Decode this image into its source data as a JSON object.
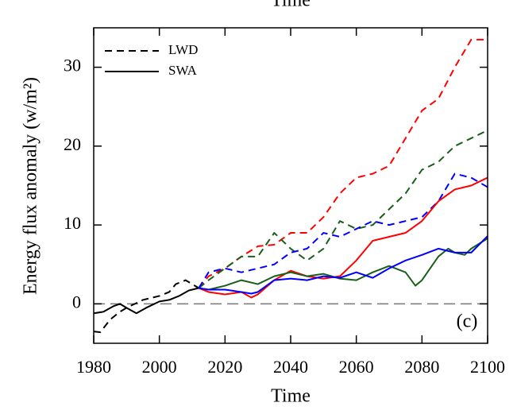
{
  "chart_data": {
    "type": "line",
    "top_label": "Time",
    "x_label": "Time",
    "y_label": "Energy flux anomaly (w/m²)",
    "annotation": "(c)",
    "xlim": [
      1980,
      2100
    ],
    "ylim": [
      -5,
      35
    ],
    "xticks": [
      1980,
      2000,
      2020,
      2040,
      2060,
      2080,
      2100
    ],
    "yticks": [
      0,
      10,
      20,
      30
    ],
    "hline": 0,
    "legend": [
      {
        "name": "LWD",
        "dash": true
      },
      {
        "name": "SWA",
        "dash": false
      }
    ],
    "series": [
      {
        "color": "#000000",
        "dash": true,
        "x": [
          1980,
          1982,
          1985,
          1988,
          1990,
          1995,
          2000,
          2003,
          2005,
          2008,
          2010,
          2012
        ],
        "values": [
          -3.5,
          -3.6,
          -2,
          -1,
          -0.5,
          0.5,
          1,
          1.5,
          2.5,
          3,
          2.5,
          2
        ]
      },
      {
        "color": "#000000",
        "dash": false,
        "x": [
          1980,
          1983,
          1986,
          1988,
          1990,
          1993,
          1996,
          2000,
          2003,
          2006,
          2009,
          2012
        ],
        "values": [
          -1.2,
          -1,
          -0.3,
          0,
          -0.5,
          -1.2,
          -0.5,
          0.3,
          0.5,
          1,
          1.7,
          2
        ]
      },
      {
        "color": "#ff0000",
        "dash": true,
        "x": [
          2012,
          2015,
          2020,
          2025,
          2030,
          2035,
          2040,
          2045,
          2050,
          2055,
          2060,
          2065,
          2070,
          2075,
          2080,
          2085,
          2090,
          2095,
          2100
        ],
        "values": [
          2,
          3.5,
          4.5,
          6,
          7.3,
          7.5,
          9,
          9,
          11,
          14,
          16,
          16.5,
          17.5,
          21,
          24.5,
          26,
          30,
          33.5,
          33.5
        ]
      },
      {
        "color": "#1a5e1a",
        "dash": true,
        "x": [
          2012,
          2015,
          2020,
          2025,
          2030,
          2035,
          2040,
          2045,
          2050,
          2055,
          2060,
          2065,
          2070,
          2075,
          2080,
          2085,
          2090,
          2095,
          2100
        ],
        "values": [
          2,
          3,
          4.5,
          6,
          6,
          9,
          7,
          5.5,
          7,
          10.5,
          9.5,
          10,
          12,
          14,
          17,
          18,
          20,
          21,
          22
        ]
      },
      {
        "color": "#0000ff",
        "dash": true,
        "x": [
          2012,
          2015,
          2020,
          2025,
          2030,
          2035,
          2040,
          2045,
          2050,
          2055,
          2060,
          2065,
          2070,
          2075,
          2080,
          2085,
          2090,
          2095,
          2100
        ],
        "values": [
          2,
          4,
          4.5,
          4,
          4.5,
          5,
          6.5,
          7,
          9,
          8.5,
          9.5,
          10.5,
          10,
          10.5,
          11,
          13,
          16.5,
          16,
          14.8
        ]
      },
      {
        "color": "#ff0000",
        "dash": false,
        "x": [
          2012,
          2015,
          2020,
          2025,
          2028,
          2030,
          2035,
          2040,
          2045,
          2050,
          2055,
          2060,
          2065,
          2070,
          2075,
          2080,
          2085,
          2090,
          2095,
          2100
        ],
        "values": [
          2,
          1.5,
          1.2,
          1.5,
          0.8,
          1.2,
          3,
          4.2,
          3.5,
          3.2,
          3.5,
          5.5,
          8,
          8.5,
          9,
          10.5,
          13,
          14.5,
          15,
          16
        ]
      },
      {
        "color": "#1a5e1a",
        "dash": false,
        "x": [
          2012,
          2015,
          2020,
          2025,
          2030,
          2035,
          2040,
          2045,
          2050,
          2055,
          2060,
          2065,
          2070,
          2075,
          2078,
          2080,
          2085,
          2088,
          2090,
          2093,
          2095,
          2100
        ],
        "values": [
          2,
          1.8,
          2.3,
          3,
          2.5,
          3.5,
          4,
          3.5,
          3.8,
          3.2,
          3,
          4,
          4.8,
          4,
          2.3,
          3,
          6,
          7,
          6.5,
          6.2,
          7,
          8.3
        ]
      },
      {
        "color": "#0000ff",
        "dash": false,
        "x": [
          2012,
          2015,
          2020,
          2025,
          2028,
          2030,
          2035,
          2040,
          2045,
          2050,
          2055,
          2060,
          2065,
          2070,
          2075,
          2080,
          2085,
          2090,
          2095,
          2100
        ],
        "values": [
          2,
          1.8,
          1.8,
          1.5,
          1.3,
          1.5,
          3,
          3.2,
          3,
          3.5,
          3.3,
          4,
          3.3,
          4.5,
          5.5,
          6.2,
          7,
          6.5,
          6.5,
          8.6
        ]
      }
    ]
  }
}
